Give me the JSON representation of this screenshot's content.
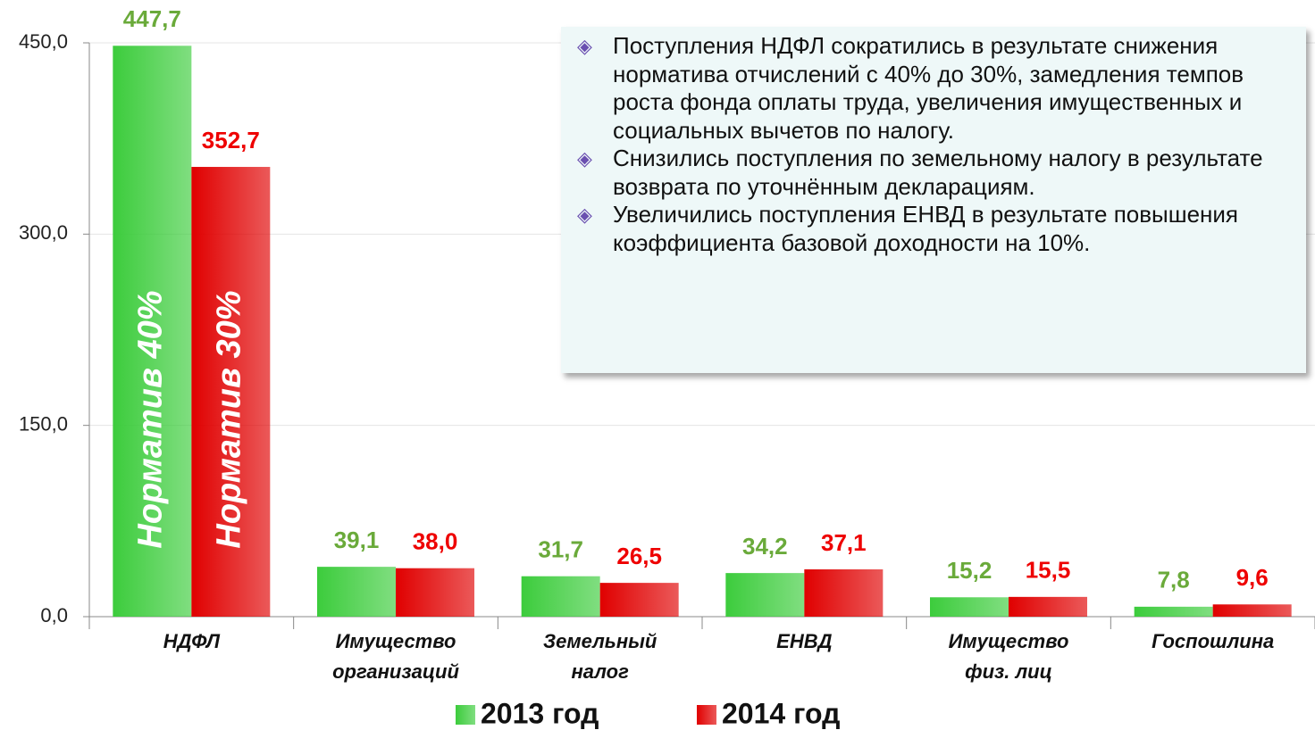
{
  "chart_data": {
    "type": "bar",
    "categories": [
      [
        "НДФЛ"
      ],
      [
        "Имущество",
        "организаций"
      ],
      [
        "Земельный",
        "налог"
      ],
      [
        "ЕНВД"
      ],
      [
        "Имущество",
        "физ. лиц"
      ],
      [
        "Госпошлина"
      ]
    ],
    "series": [
      {
        "name": "2013 год",
        "color": "#3ccc3c",
        "label_color": "#6aaa3a",
        "values": [
          447.7,
          39.1,
          31.7,
          34.2,
          15.2,
          7.8
        ],
        "value_labels": [
          "447,7",
          "39,1",
          "31,7",
          "34,2",
          "15,2",
          "7,8"
        ]
      },
      {
        "name": "2014 год",
        "color": "#e00000",
        "label_color": "#ee0000",
        "values": [
          352.7,
          38.0,
          26.5,
          37.1,
          15.5,
          9.6
        ],
        "value_labels": [
          "352,7",
          "38,0",
          "26,5",
          "37,1",
          "15,5",
          "9,6"
        ]
      }
    ],
    "ylim": [
      0,
      450
    ],
    "yticks": [
      {
        "value": 0,
        "label": "0,0"
      },
      {
        "value": 150,
        "label": "150,0"
      },
      {
        "value": 300,
        "label": "300,0"
      },
      {
        "value": 450,
        "label": "450,0"
      }
    ],
    "grid": true,
    "legend": "bottom",
    "annotations": [
      "Норматив 40%",
      "Норматив 30%"
    ],
    "notes": [
      "Поступления НДФЛ сократились в результате снижения норматива отчислений с 40% до 30%, замедления темпов роста фонда оплаты труда, увеличения имущественных и социальных вычетов по налогу.",
      "Снизились поступления по земельному налогу в результате возврата по уточнённым декларациям.",
      "Увеличились поступления ЕНВД в результате повышения коэффициента базовой доходности на 10%."
    ]
  }
}
